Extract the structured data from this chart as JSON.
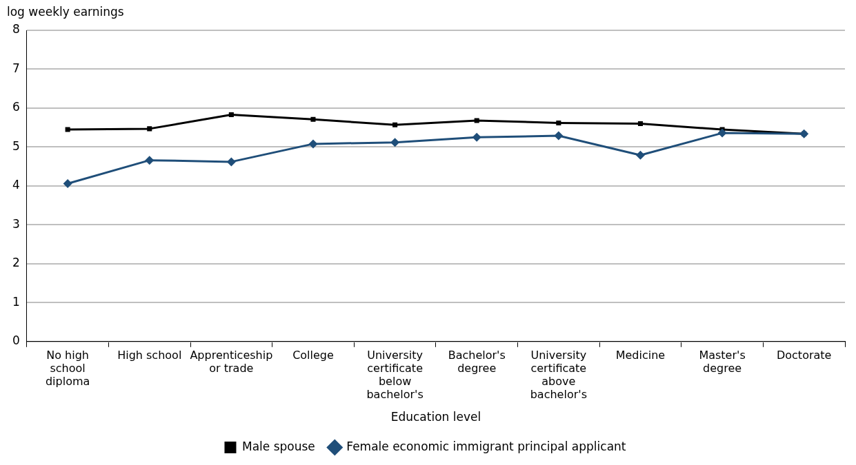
{
  "chart_data": {
    "type": "line",
    "ylabel": "log weekly earnings",
    "xlabel": "Education level",
    "categories": [
      "No high school diploma",
      "High school",
      "Apprenticeship or trade",
      "College",
      "University certificate below bachelor's",
      "Bachelor's degree",
      "University certificate above bachelor's",
      "Medicine",
      "Master's degree",
      "Doctorate"
    ],
    "series": [
      {
        "name": "Male spouse",
        "color": "#000000",
        "marker": "square",
        "values": [
          5.45,
          5.47,
          5.83,
          5.71,
          5.57,
          5.68,
          5.62,
          5.6,
          5.45,
          5.34
        ]
      },
      {
        "name": "Female economic immigrant principal applicant",
        "color": "#1f4e79",
        "marker": "diamond",
        "values": [
          4.06,
          4.66,
          4.62,
          5.08,
          5.12,
          5.25,
          5.29,
          4.79,
          5.36,
          5.34
        ]
      }
    ],
    "ylim": [
      0,
      8
    ],
    "yticks": [
      0,
      1,
      2,
      3,
      4,
      5,
      6,
      7,
      8
    ],
    "grid": "y",
    "legend": "bottom",
    "line_style": "solid"
  }
}
